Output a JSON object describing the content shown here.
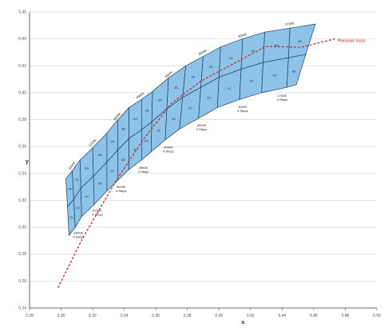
{
  "chart_data": {
    "type": "scatter",
    "title": "",
    "xlabel": "x",
    "ylabel": "y",
    "xlim": [
      0.28,
      0.5
    ],
    "ylim": [
      0.24,
      0.46
    ],
    "x_ticks": [
      "0.28",
      "0.30",
      "0.32",
      "0.34",
      "0.36",
      "0.38",
      "0.40",
      "0.42",
      "0.44",
      "0.46",
      "0.48",
      "0.50"
    ],
    "y_ticks": [
      "0.24",
      "0.26",
      "0.28",
      "0.30",
      "0.32",
      "0.34",
      "0.36",
      "0.38",
      "0.40",
      "0.42",
      "0.44",
      "0.46"
    ],
    "grid": "horizontal",
    "colors": {
      "cell_fill": "#8ec3e8",
      "cell_stroke": "#1d3f66",
      "locus": "#d0202a",
      "grid": "#cfcfcf"
    },
    "locus": {
      "name": "Planckian locus",
      "points": [
        [
          0.298,
          0.255
        ],
        [
          0.3135,
          0.2915
        ],
        [
          0.3347,
          0.3345
        ],
        [
          0.3524,
          0.3658
        ],
        [
          0.37,
          0.3922
        ],
        [
          0.3885,
          0.4086
        ],
        [
          0.4106,
          0.4224
        ],
        [
          0.4299,
          0.4345
        ],
        [
          0.4521,
          0.4338
        ],
        [
          0.4735,
          0.44
        ]
      ]
    },
    "groups": [
      {
        "bin": "6500K",
        "cct": "6500K",
        "cct_sub": "4 Steps",
        "cells": [
          "7A",
          "7B",
          "7C",
          "7D"
        ],
        "boundaries": [
          {
            "top": [
              0.303,
              0.336
            ],
            "bottom": [
              0.305,
              0.294
            ]
          },
          {
            "top": [
              0.307,
              0.342
            ],
            "bottom": [
              0.309,
              0.3
            ]
          },
          {
            "top": [
              0.312,
              0.35
            ],
            "bottom": [
              0.313,
              0.308
            ]
          }
        ]
      },
      {
        "bin": "5700K",
        "cct": "5700K",
        "cct_sub": "4 Steps",
        "cells": [
          "6A",
          "6B",
          "6C",
          "6D"
        ],
        "boundaries": [
          {
            "top": [
              0.312,
              0.35
            ],
            "bottom": [
              0.313,
              0.308
            ]
          },
          {
            "top": [
              0.32,
              0.359
            ],
            "bottom": [
              0.321,
              0.317
            ]
          },
          {
            "top": [
              0.329,
              0.37
            ],
            "bottom": [
              0.329,
              0.327
            ]
          }
        ]
      },
      {
        "bin": "5000K",
        "cct": "5000K",
        "cct_sub": "4 Steps",
        "cells": [
          "5A",
          "5B",
          "5C",
          "5D"
        ],
        "boundaries": [
          {
            "top": [
              0.329,
              0.37
            ],
            "bottom": [
              0.329,
              0.327
            ]
          },
          {
            "top": [
              0.336,
              0.38
            ],
            "bottom": [
              0.336,
              0.335
            ]
          },
          {
            "top": [
              0.343,
              0.389
            ],
            "bottom": [
              0.343,
              0.343
            ]
          }
        ]
      },
      {
        "bin": "4500K",
        "cct": "4500K",
        "cct_sub": "4 Steps",
        "cells": [
          "4A",
          "4B",
          "4C",
          "4D"
        ],
        "boundaries": [
          {
            "top": [
              0.343,
              0.389
            ],
            "bottom": [
              0.343,
              0.343
            ]
          },
          {
            "top": [
              0.351,
              0.395
            ],
            "bottom": [
              0.351,
              0.35
            ]
          },
          {
            "top": [
              0.358,
              0.401
            ],
            "bottom": [
              0.357,
              0.356
            ]
          }
        ]
      },
      {
        "bin": "4000K",
        "cct": "4000K",
        "cct_sub": "4 Steps",
        "cells": [
          "3A",
          "3B",
          "3C",
          "3D"
        ],
        "boundaries": [
          {
            "top": [
              0.358,
              0.401
            ],
            "bottom": [
              0.357,
              0.356
            ]
          },
          {
            "top": [
              0.368,
              0.411
            ],
            "bottom": [
              0.366,
              0.365
            ]
          },
          {
            "top": [
              0.379,
              0.42
            ],
            "bottom": [
              0.375,
              0.373
            ]
          }
        ]
      },
      {
        "bin": "3500K",
        "cct": "3500K",
        "cct_sub": "4 Steps",
        "cells": [
          "2A",
          "2B",
          "2C",
          "2D"
        ],
        "boundaries": [
          {
            "top": [
              0.379,
              0.42
            ],
            "bottom": [
              0.375,
              0.373
            ]
          },
          {
            "top": [
              0.39,
              0.427
            ],
            "bottom": [
              0.387,
              0.381
            ]
          },
          {
            "top": [
              0.401,
              0.434
            ],
            "bottom": [
              0.399,
              0.389
            ]
          }
        ]
      },
      {
        "bin": "3000K",
        "cct": "3000K",
        "cct_sub": "4 Steps",
        "cells": [
          "1A",
          "1B",
          "1C",
          "1D"
        ],
        "boundaries": [
          {
            "top": [
              0.401,
              0.434
            ],
            "bottom": [
              0.399,
              0.389
            ]
          },
          {
            "top": [
              0.415,
              0.44
            ],
            "bottom": [
              0.413,
              0.395
            ]
          },
          {
            "top": [
              0.429,
              0.445
            ],
            "bottom": [
              0.427,
              0.4
            ]
          }
        ]
      },
      {
        "bin": "2700K",
        "cct": "2700K",
        "cct_sub": "4 Steps",
        "cells": [
          "8A",
          "8B",
          "8C",
          "8D"
        ],
        "boundaries": [
          {
            "top": [
              0.429,
              0.445
            ],
            "bottom": [
              0.427,
              0.4
            ]
          },
          {
            "top": [
              0.445,
              0.448
            ],
            "bottom": [
              0.443,
              0.404
            ]
          },
          {
            "top": [
              0.461,
              0.451
            ],
            "bottom": [
              0.449,
              0.406
            ]
          }
        ]
      }
    ]
  }
}
